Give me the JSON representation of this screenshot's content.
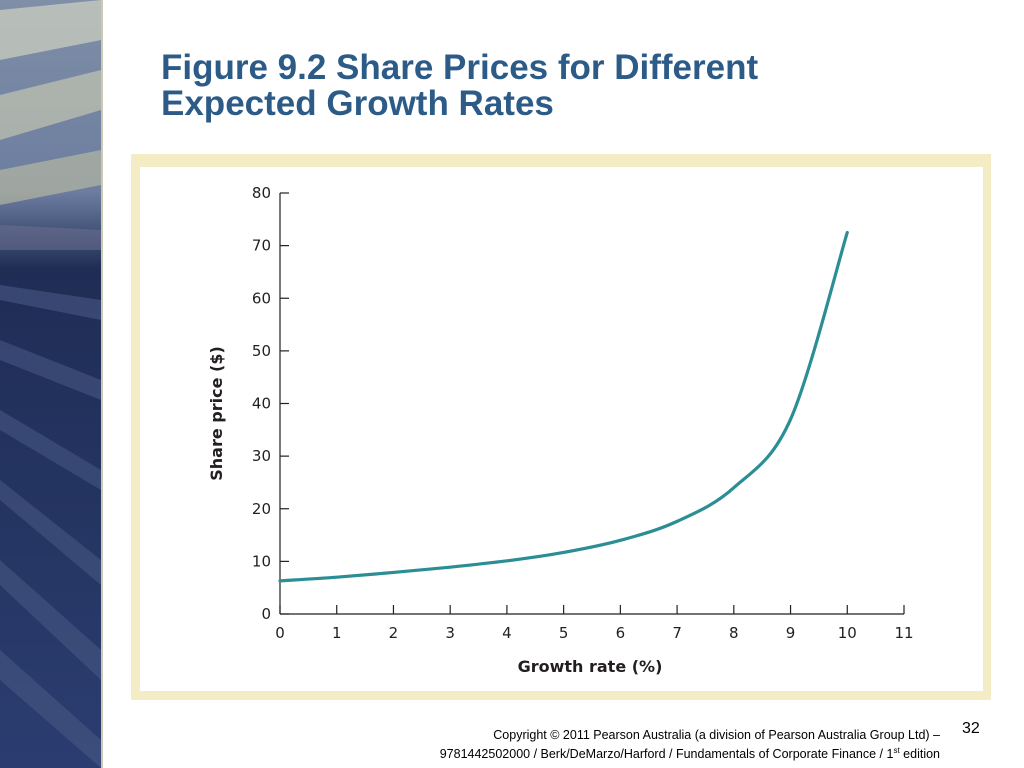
{
  "slide": {
    "title_line1": "Figure 9.2 Share Prices for Different",
    "title_line2": "Expected Growth Rates",
    "page_number": "32",
    "copyright_line1": "Copyright © 2011 Pearson Australia (a division of Pearson Australia Group Ltd) –",
    "copyright_line2_a": "9781442502000 / Berk/DeMarzo/Harford / Fundamentals of Corporate Finance / 1",
    "copyright_line2_sup": "st",
    "copyright_line2_b": " edition"
  },
  "colors": {
    "title": "#2d5b88",
    "frame": "#f3ecc4",
    "curve": "#2a8e94",
    "axis": "#231f20"
  },
  "chart_data": {
    "type": "line",
    "xlabel": "Growth rate (%)",
    "ylabel": "Share price ($)",
    "xlim": [
      0,
      11
    ],
    "ylim": [
      0,
      80
    ],
    "x_ticks": [
      "0",
      "1",
      "2",
      "3",
      "4",
      "5",
      "6",
      "7",
      "8",
      "9",
      "10",
      "11"
    ],
    "y_ticks": [
      "0",
      "10",
      "20",
      "30",
      "40",
      "50",
      "60",
      "70",
      "80"
    ],
    "grid": false,
    "series": [
      {
        "x": [
          0,
          1,
          2,
          3,
          4,
          5,
          6,
          7,
          8,
          9,
          10
        ],
        "y": [
          6.3,
          7.0,
          7.9,
          8.9,
          10.1,
          11.7,
          14.0,
          17.6,
          24.0,
          37.0,
          72.5
        ]
      }
    ]
  }
}
